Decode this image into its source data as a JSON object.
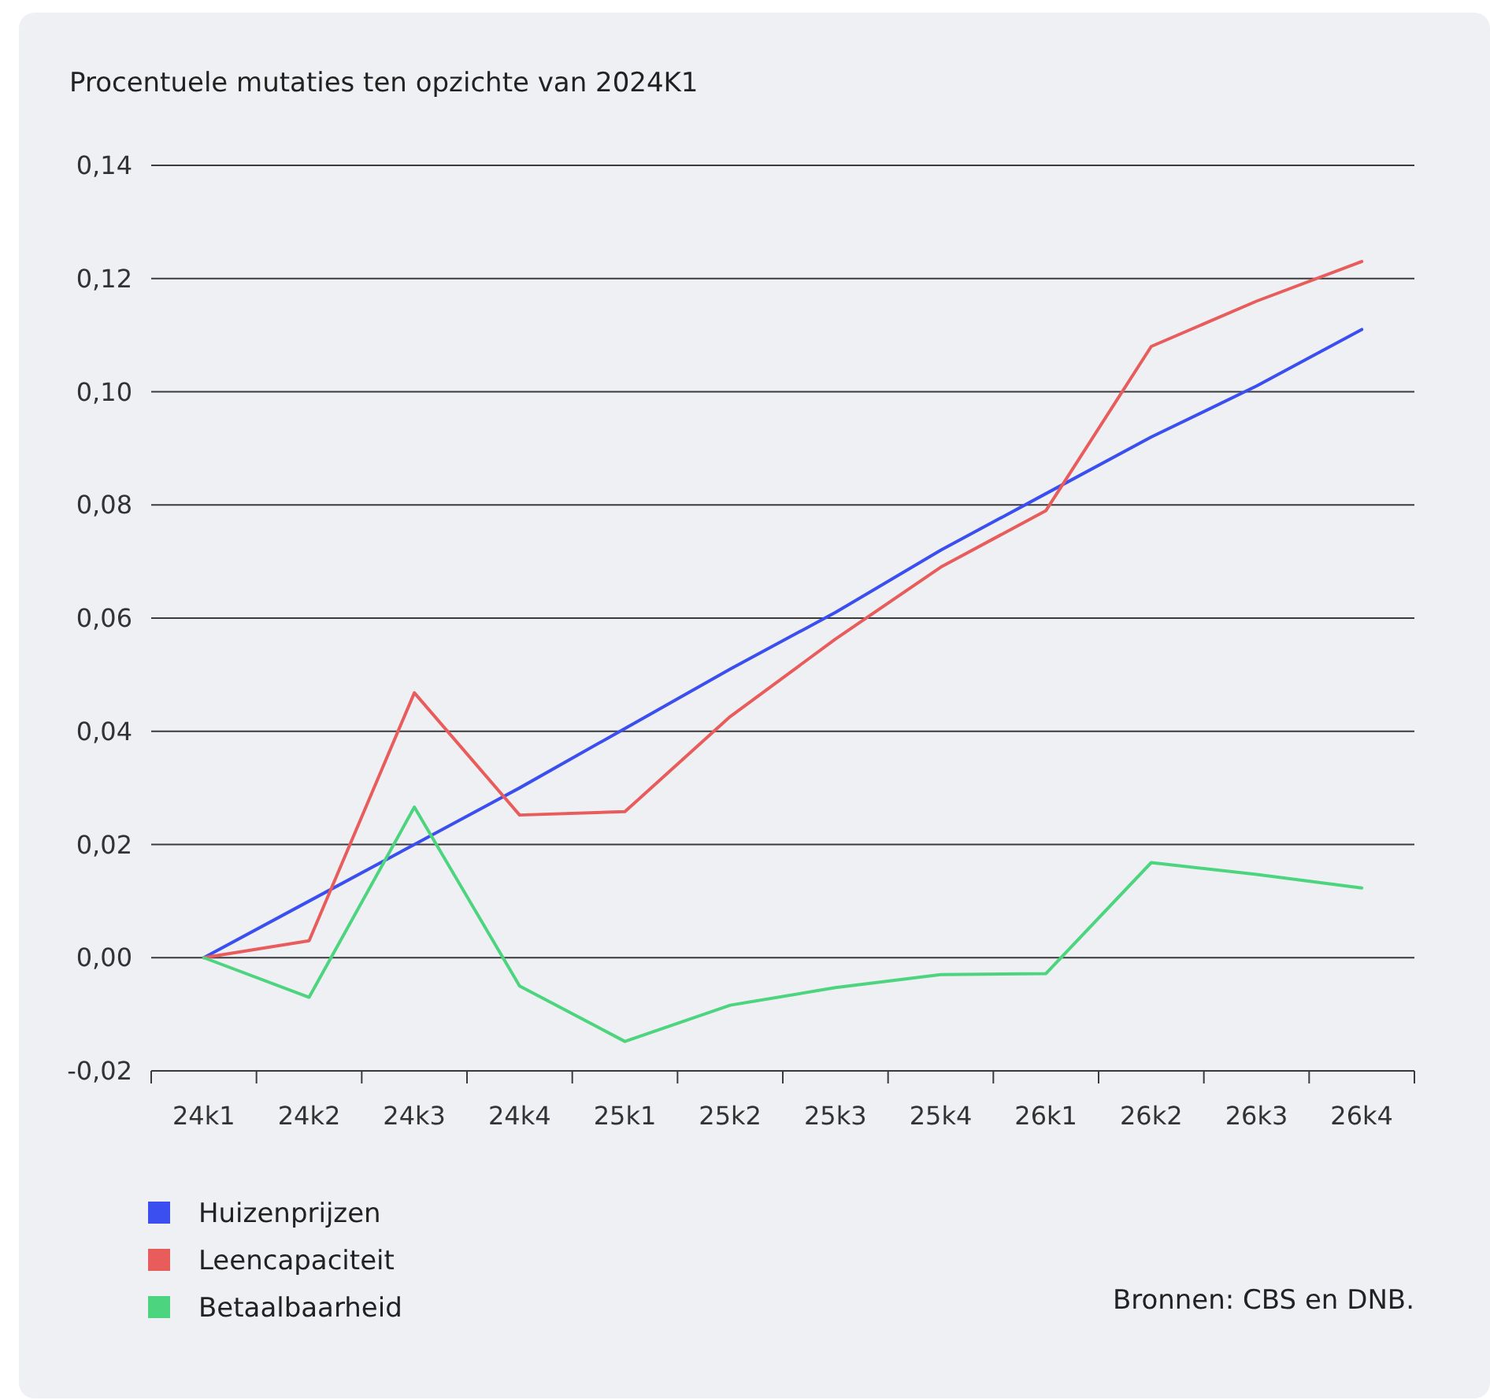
{
  "chart_data": {
    "type": "line",
    "title": "Procentuele mutaties ten opzichte van 2024K1",
    "categories": [
      "24k1",
      "24k2",
      "24k3",
      "24k4",
      "25k1",
      "25k2",
      "25k3",
      "25k4",
      "26k1",
      "26k2",
      "26k3",
      "26k4"
    ],
    "series": [
      {
        "name": "Huizenprijzen",
        "color": "#3b4ef0",
        "values": [
          0,
          0.01,
          0.02,
          0.03,
          0.0405,
          0.051,
          0.061,
          0.072,
          0.082,
          0.092,
          0.101,
          0.111
        ]
      },
      {
        "name": "Leencapaciteit",
        "color": "#e85c5c",
        "values": [
          0,
          0.003,
          0.0468,
          0.0252,
          0.0258,
          0.0426,
          0.0563,
          0.069,
          0.079,
          0.108,
          0.116,
          0.123
        ]
      },
      {
        "name": "Betaalbaarheid",
        "color": "#4cd47e",
        "values": [
          0,
          -0.007,
          0.0266,
          -0.005,
          -0.0148,
          -0.0084,
          -0.0053,
          -0.003,
          -0.0028,
          0.0168,
          0.0147,
          0.0123
        ]
      }
    ],
    "ylim": [
      -0.02,
      0.14
    ],
    "yticks": [
      {
        "value": -0.02,
        "label": "-0,02"
      },
      {
        "value": 0,
        "label": "0,00"
      },
      {
        "value": 0.02,
        "label": "0,02"
      },
      {
        "value": 0.04,
        "label": "0,04"
      },
      {
        "value": 0.06,
        "label": "0,06"
      },
      {
        "value": 0.08,
        "label": "0,08"
      },
      {
        "value": 0.1,
        "label": "0,10"
      },
      {
        "value": 0.12,
        "label": "0,12"
      },
      {
        "value": 0.14,
        "label": "0,14"
      }
    ],
    "grid": "y",
    "legend": "bottom left",
    "marker": "none",
    "line_style": "solid",
    "annotations": [
      "Bronnen: CBS en DNB."
    ]
  }
}
